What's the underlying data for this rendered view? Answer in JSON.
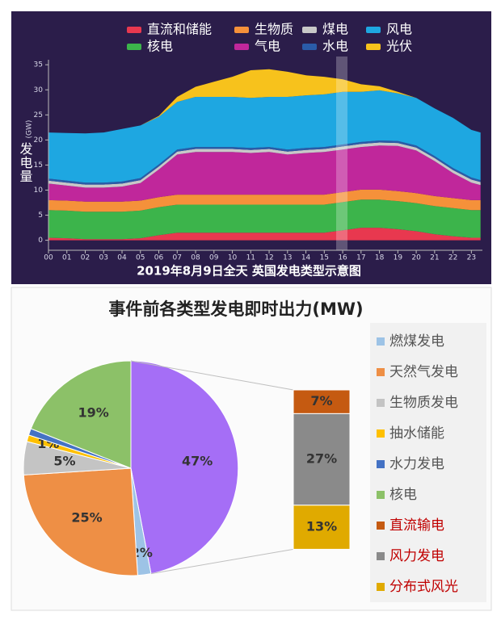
{
  "chart_data": [
    {
      "type": "area",
      "stacked": true,
      "title": "2019年8月9日全天 英国发电类型示意图",
      "y_label": "发电量",
      "y_unit": "(GW)",
      "x": [
        0,
        1,
        2,
        3,
        4,
        5,
        6,
        7,
        8,
        9,
        10,
        11,
        12,
        13,
        14,
        15,
        16,
        17,
        18,
        19,
        20,
        21,
        22,
        23,
        23.5
      ],
      "xlim": [
        0,
        23.6
      ],
      "xticks": [
        {
          "value": 0,
          "label": "00"
        },
        {
          "value": 1,
          "label": "01"
        },
        {
          "value": 2,
          "label": "02"
        },
        {
          "value": 3,
          "label": "03"
        },
        {
          "value": 4,
          "label": "04"
        },
        {
          "value": 5,
          "label": "05"
        },
        {
          "value": 6,
          "label": "06"
        },
        {
          "value": 7,
          "label": "07"
        },
        {
          "value": 8,
          "label": "08"
        },
        {
          "value": 9,
          "label": "09"
        },
        10,
        11,
        12,
        13,
        14,
        15,
        16,
        17,
        18,
        19,
        20,
        21,
        22,
        23
      ],
      "ylim": [
        -2,
        36
      ],
      "yticks": [
        0,
        5,
        10,
        15,
        20,
        25,
        30,
        35
      ],
      "series": [
        {
          "name": "直流和储能",
          "color": "#e8384f",
          "values": [
            0.5,
            0.4,
            0.2,
            0.2,
            0.2,
            0.4,
            1.0,
            1.5,
            1.5,
            1.5,
            1.5,
            1.5,
            1.5,
            1.5,
            1.5,
            1.5,
            2.0,
            2.5,
            2.5,
            2.2,
            1.8,
            1.2,
            0.8,
            0.5,
            0.5
          ]
        },
        {
          "name": "核电",
          "color": "#3cb44b",
          "values": [
            5.5,
            5.5,
            5.5,
            5.5,
            5.5,
            5.5,
            5.6,
            5.6,
            5.6,
            5.6,
            5.6,
            5.6,
            5.6,
            5.6,
            5.6,
            5.6,
            5.6,
            5.6,
            5.6,
            5.6,
            5.6,
            5.6,
            5.6,
            5.5,
            5.5
          ]
        },
        {
          "name": "生物质",
          "color": "#f5913a",
          "values": [
            2,
            2,
            2,
            2,
            2,
            2,
            2,
            2,
            2,
            2,
            2,
            2,
            2,
            2,
            2,
            2,
            2,
            2,
            2,
            2,
            2,
            2,
            2,
            2,
            2
          ]
        },
        {
          "name": "气电",
          "color": "#c0279b",
          "values": [
            3.3,
            3.0,
            2.8,
            2.8,
            3.0,
            3.5,
            5.5,
            8.0,
            8.5,
            8.5,
            8.5,
            8.3,
            8.5,
            8.0,
            8.3,
            8.5,
            8.5,
            8.5,
            8.8,
            9.0,
            8.5,
            7.0,
            5.0,
            3.5,
            3.0
          ]
        },
        {
          "name": "煤电",
          "color": "#c8c8c8",
          "values": [
            0.6,
            0.6,
            0.6,
            0.6,
            0.6,
            0.6,
            0.6,
            0.6,
            0.6,
            0.6,
            0.6,
            0.6,
            0.6,
            0.6,
            0.6,
            0.6,
            0.6,
            0.6,
            0.6,
            0.6,
            0.6,
            0.6,
            0.6,
            0.6,
            0.6
          ]
        },
        {
          "name": "水电",
          "color": "#2a5ba8",
          "values": [
            0.4,
            0.4,
            0.4,
            0.4,
            0.4,
            0.4,
            0.4,
            0.4,
            0.4,
            0.4,
            0.4,
            0.4,
            0.4,
            0.4,
            0.4,
            0.4,
            0.4,
            0.4,
            0.4,
            0.4,
            0.4,
            0.4,
            0.4,
            0.4,
            0.4
          ]
        },
        {
          "name": "风电",
          "color": "#1ea7e1",
          "values": [
            9.2,
            9.5,
            9.8,
            10.0,
            10.5,
            10.5,
            9.5,
            9.5,
            10.0,
            10.0,
            10.0,
            10.0,
            10.0,
            10.5,
            10.5,
            10.5,
            10.5,
            10.0,
            10.0,
            9.5,
            9.5,
            9.5,
            10.0,
            9.5,
            9.5
          ]
        },
        {
          "name": "光伏",
          "color": "#f7c21c",
          "values": [
            0,
            0,
            0,
            0,
            0,
            0,
            0.2,
            1,
            2,
            3,
            4,
            5.5,
            5.5,
            5,
            4,
            3.5,
            2.5,
            1.5,
            0.8,
            0.3,
            0,
            0,
            0,
            0,
            0
          ]
        }
      ]
    },
    {
      "type": "pie",
      "title": "事件前各类型发电即时出力(MW)",
      "categories": [
        null,
        "燃煤发电",
        "天然气发电",
        "生物质发电",
        "抽水储能",
        "水力发电",
        "核电"
      ],
      "values": [
        47,
        2,
        25,
        5,
        1,
        1,
        19
      ],
      "value_labels": [
        "47%",
        "2%",
        "25%",
        "5%",
        "1%",
        null,
        "19%"
      ],
      "colors": [
        "#a56ef6",
        "#9dc3e6",
        "#ee8f45",
        "#c4c4c4",
        "#ffc000",
        "#4472c4",
        "#8cc168"
      ],
      "breakdown": {
        "categories": [
          "直流输电",
          "风力发电",
          "分布式风光"
        ],
        "values": [
          7,
          27,
          13
        ],
        "value_labels": [
          "7%",
          "27%",
          "13%"
        ],
        "colors": [
          "#c55a11",
          "#8a8a8a",
          "#e0aa00"
        ],
        "legend_text_color": "#c00000"
      }
    }
  ]
}
